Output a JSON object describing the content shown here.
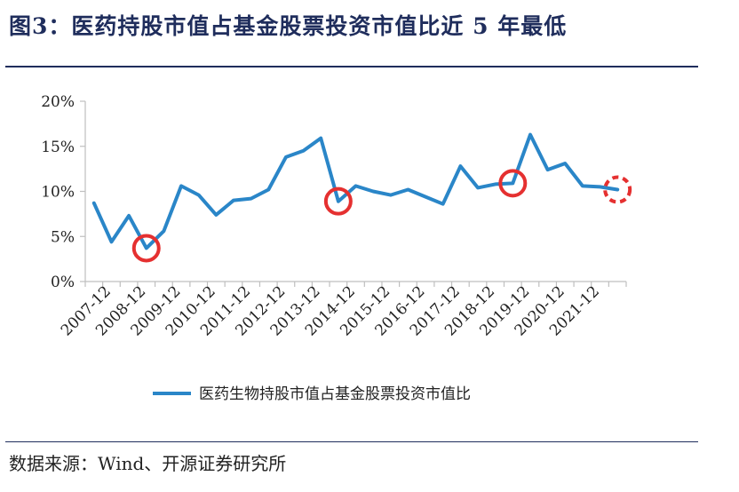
{
  "figure": {
    "title": "图3：医药持股市值占基金股票投资市值比近 5 年最低",
    "source": "数据来源：Wind、开源证券研究所"
  },
  "colors": {
    "title": "#1f2d5c",
    "line": "#2a86c8",
    "marker": "#e53030",
    "axis": "#bfbfbf"
  },
  "chart_data": {
    "type": "line",
    "title": "",
    "xlabel": "",
    "ylabel": "",
    "ylim": [
      0,
      20
    ],
    "yticks": [
      "0%",
      "5%",
      "10%",
      "15%",
      "20%"
    ],
    "ytick_values": [
      0,
      5,
      10,
      15,
      20
    ],
    "grid": false,
    "legend_position": "bottom-center",
    "x": [
      "2007-06",
      "2007-12",
      "2008-06",
      "2008-12",
      "2009-06",
      "2009-12",
      "2010-06",
      "2010-12",
      "2011-06",
      "2011-12",
      "2012-06",
      "2012-12",
      "2013-06",
      "2013-12",
      "2014-06",
      "2014-12",
      "2015-06",
      "2015-12",
      "2016-06",
      "2016-12",
      "2017-06",
      "2017-12",
      "2018-06",
      "2018-12",
      "2019-06",
      "2019-12",
      "2020-06",
      "2020-12",
      "2021-06",
      "2021-12",
      "2022-06"
    ],
    "xtick_labels": [
      "2007-12",
      "2008-12",
      "2009-12",
      "2010-12",
      "2011-12",
      "2012-12",
      "2013-12",
      "2014-12",
      "2015-12",
      "2016-12",
      "2017-12",
      "2018-12",
      "2019-12",
      "2020-12",
      "2021-12"
    ],
    "series": [
      {
        "name": "医药生物持股市值占基金股票投资市值比",
        "values": [
          8.7,
          4.4,
          7.3,
          3.7,
          5.6,
          10.6,
          9.6,
          7.4,
          9.0,
          9.2,
          10.2,
          13.8,
          14.5,
          15.9,
          8.9,
          10.6,
          10.0,
          9.6,
          10.2,
          9.4,
          8.6,
          12.8,
          10.4,
          10.8,
          10.9,
          16.3,
          12.4,
          13.1,
          10.6,
          10.5,
          10.2
        ]
      }
    ],
    "highlighted_points": [
      {
        "x": "2008-12",
        "style": "solid"
      },
      {
        "x": "2014-06",
        "style": "solid"
      },
      {
        "x": "2019-06",
        "style": "solid"
      },
      {
        "x": "2022-06",
        "style": "dashed"
      }
    ]
  }
}
